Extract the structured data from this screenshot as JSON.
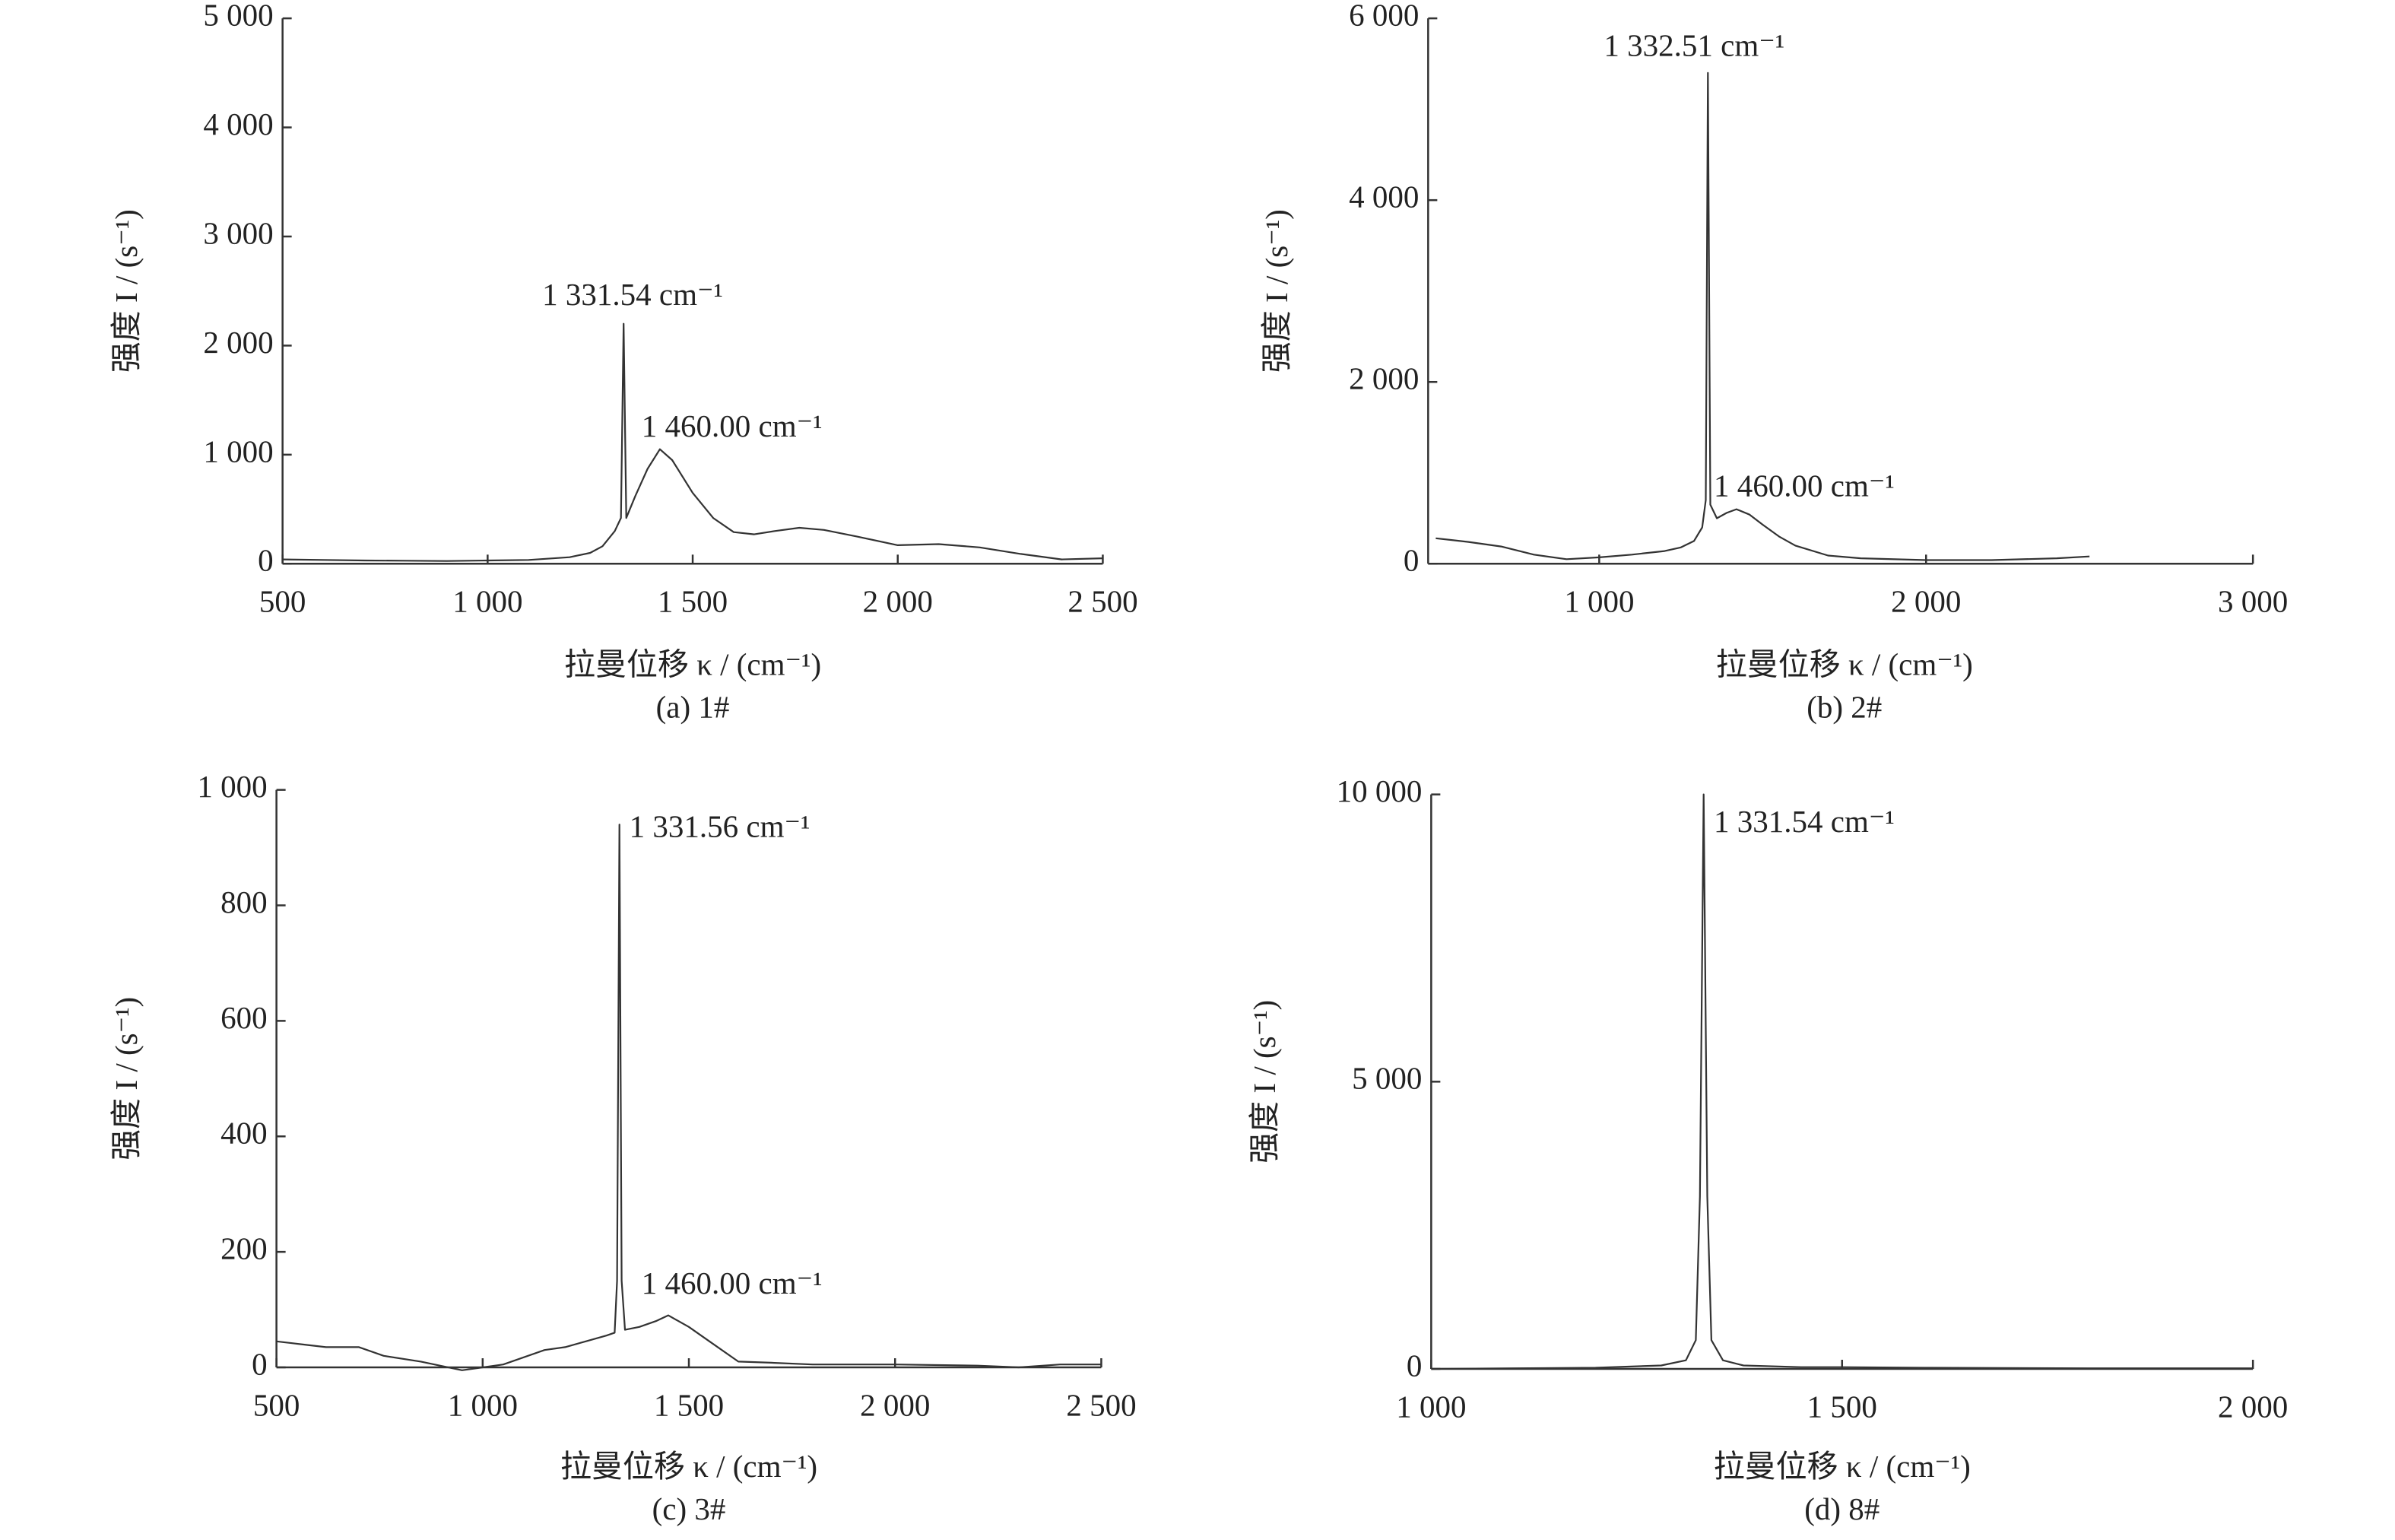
{
  "chart_data": [
    {
      "type": "line",
      "caption": "(a) 1#",
      "xlabel": "拉曼位移 κ / (cm⁻¹)",
      "ylabel": "强度 I / (s⁻¹)",
      "color": "#333333",
      "annotations": [
        "1 331.54 cm⁻¹",
        "1 460.00 cm⁻¹"
      ],
      "x": [
        500,
        600,
        700,
        800,
        900,
        1000,
        1100,
        1200,
        1250,
        1280,
        1310,
        1325,
        1331.54,
        1338,
        1360,
        1390,
        1420,
        1450,
        1500,
        1550,
        1600,
        1650,
        1700,
        1760,
        1820,
        1900,
        2000,
        2100,
        2200,
        2300,
        2400,
        2500
      ],
      "values": [
        40,
        35,
        30,
        28,
        25,
        30,
        35,
        60,
        100,
        160,
        300,
        420,
        2200,
        420,
        620,
        870,
        1050,
        950,
        650,
        420,
        290,
        270,
        300,
        330,
        310,
        250,
        170,
        180,
        150,
        90,
        40,
        50
      ],
      "xlim": [
        500,
        2500
      ],
      "ylim": [
        0,
        5000
      ],
      "xticks": [
        500,
        {
          "value": 1000,
          "label": "1 000"
        },
        {
          "value": 1500,
          "label": "1 500"
        },
        {
          "value": 2000,
          "label": "2 000"
        },
        {
          "value": 2500,
          "label": "2 500"
        }
      ],
      "yticks": [
        0,
        {
          "value": 1000,
          "label": "1 000"
        },
        {
          "value": 2000,
          "label": "2 000"
        },
        {
          "value": 3000,
          "label": "3 000"
        },
        {
          "value": 4000,
          "label": "4 000"
        },
        {
          "value": 5000,
          "label": "5 000"
        }
      ]
    },
    {
      "type": "line",
      "caption": "(b) 2#",
      "xlabel": "拉曼位移 κ / (cm⁻¹)",
      "ylabel": "强度 I / (s⁻¹)",
      "color": "#333333",
      "annotations": [
        "1 332.51 cm⁻¹",
        "1 460.00 cm⁻¹"
      ],
      "x": [
        500,
        600,
        700,
        800,
        900,
        1000,
        1100,
        1200,
        1250,
        1290,
        1315,
        1326,
        1332.51,
        1340,
        1360,
        1390,
        1420,
        1460,
        1500,
        1550,
        1600,
        1700,
        1800,
        2000,
        2200,
        2400,
        2500
      ],
      "values": [
        280,
        240,
        190,
        100,
        50,
        70,
        100,
        140,
        180,
        250,
        400,
        700,
        5400,
        650,
        500,
        560,
        600,
        540,
        430,
        300,
        200,
        90,
        60,
        40,
        40,
        60,
        80
      ],
      "xlim": [
        500,
        3000
      ],
      "ylim": [
        0,
        6000
      ],
      "xticks": [
        {
          "value": 1000,
          "label": "1 000"
        },
        {
          "value": 2000,
          "label": "2 000"
        },
        {
          "value": 3000,
          "label": "3 000"
        }
      ],
      "yticks": [
        0,
        {
          "value": 2000,
          "label": "2 000"
        },
        {
          "value": 4000,
          "label": "4 000"
        },
        {
          "value": 6000,
          "label": "6 000"
        }
      ]
    },
    {
      "type": "line",
      "caption": "(c) 3#",
      "xlabel": "拉曼位移 κ / (cm⁻¹)",
      "ylabel": "强度 I / (s⁻¹)",
      "color": "#333333",
      "annotations": [
        "1 331.56 cm⁻¹",
        "1 460.00 cm⁻¹"
      ],
      "x": [
        500,
        560,
        620,
        700,
        760,
        850,
        950,
        1050,
        1150,
        1200,
        1250,
        1300,
        1320,
        1326,
        1331.56,
        1337,
        1345,
        1380,
        1420,
        1450,
        1500,
        1550,
        1620,
        1700,
        1800,
        2000,
        2200,
        2300,
        2400,
        2500
      ],
      "values": [
        45,
        40,
        35,
        35,
        20,
        10,
        -5,
        5,
        30,
        35,
        45,
        55,
        60,
        150,
        940,
        150,
        65,
        70,
        80,
        90,
        70,
        45,
        10,
        8,
        5,
        5,
        3,
        0,
        5,
        5
      ],
      "xlim": [
        500,
        2500
      ],
      "ylim": [
        0,
        1000
      ],
      "xticks": [
        500,
        {
          "value": 1000,
          "label": "1 000"
        },
        {
          "value": 1500,
          "label": "1 500"
        },
        {
          "value": 2000,
          "label": "2 000"
        },
        {
          "value": 2500,
          "label": "2 500"
        }
      ],
      "yticks": [
        0,
        200,
        400,
        600,
        800,
        {
          "value": 1000,
          "label": "1 000"
        }
      ]
    },
    {
      "type": "line",
      "caption": "(d) 8#",
      "xlabel": "拉曼位移 κ / (cm⁻¹)",
      "ylabel": "强度 I / (s⁻¹)",
      "color": "#333333",
      "annotations": [
        "1 331.54 cm⁻¹"
      ],
      "x": [
        1000,
        1100,
        1200,
        1280,
        1310,
        1322,
        1327,
        1331.54,
        1336,
        1341,
        1355,
        1380,
        1450,
        1500,
        1600,
        1800,
        2000
      ],
      "values": [
        0,
        10,
        20,
        60,
        150,
        500,
        3000,
        10000,
        3000,
        500,
        150,
        60,
        30,
        30,
        20,
        10,
        10
      ],
      "xlim": [
        1000,
        2000
      ],
      "ylim": [
        0,
        10000
      ],
      "xticks": [
        {
          "value": 1000,
          "label": "1 000"
        },
        {
          "value": 1500,
          "label": "1 500"
        },
        {
          "value": 2000,
          "label": "2 000"
        }
      ],
      "yticks": [
        0,
        {
          "value": 5000,
          "label": "5 000"
        },
        {
          "value": 10000,
          "label": "10 000"
        }
      ]
    }
  ]
}
